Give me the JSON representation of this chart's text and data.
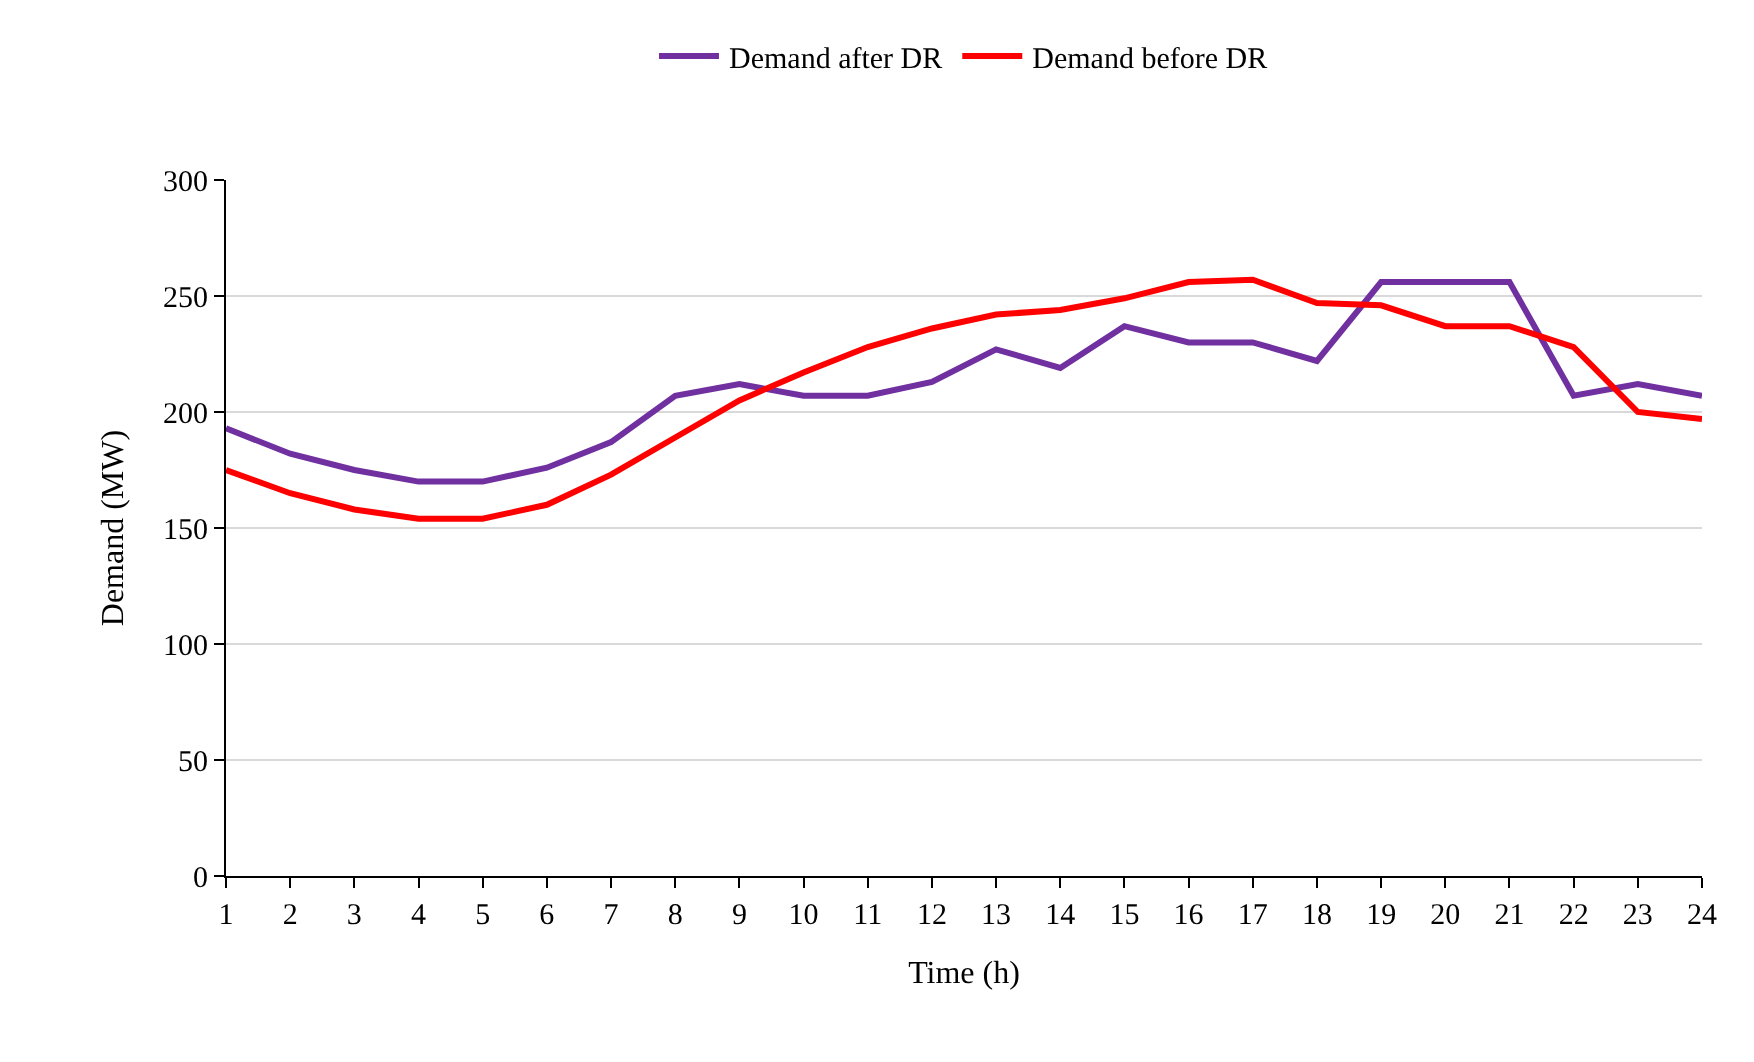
{
  "chart_data": {
    "type": "line",
    "xlabel": "Time (h)",
    "ylabel": "Demand (MW)",
    "x": [
      1,
      2,
      3,
      4,
      5,
      6,
      7,
      8,
      9,
      10,
      11,
      12,
      13,
      14,
      15,
      16,
      17,
      18,
      19,
      20,
      21,
      22,
      23,
      24
    ],
    "xlim": [
      1,
      24
    ],
    "xticks": [
      1,
      2,
      3,
      4,
      5,
      6,
      7,
      8,
      9,
      10,
      11,
      12,
      13,
      14,
      15,
      16,
      17,
      18,
      19,
      20,
      21,
      22,
      23,
      24
    ],
    "ylim": [
      0,
      300
    ],
    "yticks": [
      0,
      50,
      100,
      150,
      200,
      250,
      300
    ],
    "grid": "y",
    "legend": "top",
    "marker": "none",
    "line_style": "solid",
    "series": [
      {
        "name": "Demand after DR",
        "color": "#7030a0",
        "values": [
          193,
          182,
          175,
          170,
          170,
          176,
          187,
          207,
          212,
          207,
          207,
          213,
          227,
          219,
          237,
          230,
          230,
          222,
          256,
          256,
          256,
          207,
          212,
          207
        ]
      },
      {
        "name": "Demand before DR",
        "color": "#ff0000",
        "values": [
          175,
          165,
          158,
          154,
          154,
          160,
          173,
          189,
          205,
          217,
          228,
          236,
          242,
          244,
          249,
          256,
          257,
          247,
          246,
          237,
          237,
          228,
          200,
          197
        ]
      }
    ]
  }
}
